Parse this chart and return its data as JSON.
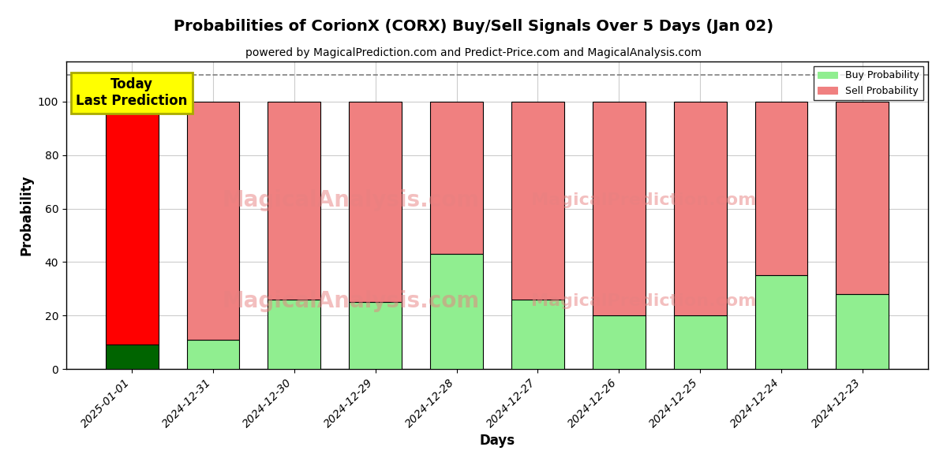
{
  "title": "Probabilities of CorionX (CORX) Buy/Sell Signals Over 5 Days (Jan 02)",
  "subtitle": "powered by MagicalPrediction.com and Predict-Price.com and MagicalAnalysis.com",
  "xlabel": "Days",
  "ylabel": "Probability",
  "dates": [
    "2025-01-01",
    "2024-12-31",
    "2024-12-30",
    "2024-12-29",
    "2024-12-28",
    "2024-12-27",
    "2024-12-26",
    "2024-12-25",
    "2024-12-24",
    "2024-12-23"
  ],
  "buy_values": [
    9,
    11,
    26,
    25,
    43,
    26,
    20,
    20,
    35,
    28
  ],
  "sell_values": [
    91,
    89,
    74,
    75,
    57,
    74,
    80,
    80,
    65,
    72
  ],
  "today_index": 0,
  "today_buy_color": "#006400",
  "today_sell_color": "#ff0000",
  "regular_buy_color": "#90EE90",
  "regular_sell_color": "#F08080",
  "today_annotation": "Today\nLast Prediction",
  "annotation_bg_color": "#ffff00",
  "annotation_border_color": "#aaaa00",
  "watermark_text1": "MagicalAnalysis.com",
  "watermark_text2": "MagicalPrediction.com",
  "ylim": [
    0,
    115
  ],
  "dashed_line_y": 110,
  "legend_buy_label": "Buy Probability",
  "legend_sell_label": "Sell Probability",
  "bar_width": 0.65,
  "background_color": "#ffffff",
  "grid_color": "#cccccc",
  "title_fontsize": 14,
  "subtitle_fontsize": 10,
  "annotation_fontsize": 12
}
